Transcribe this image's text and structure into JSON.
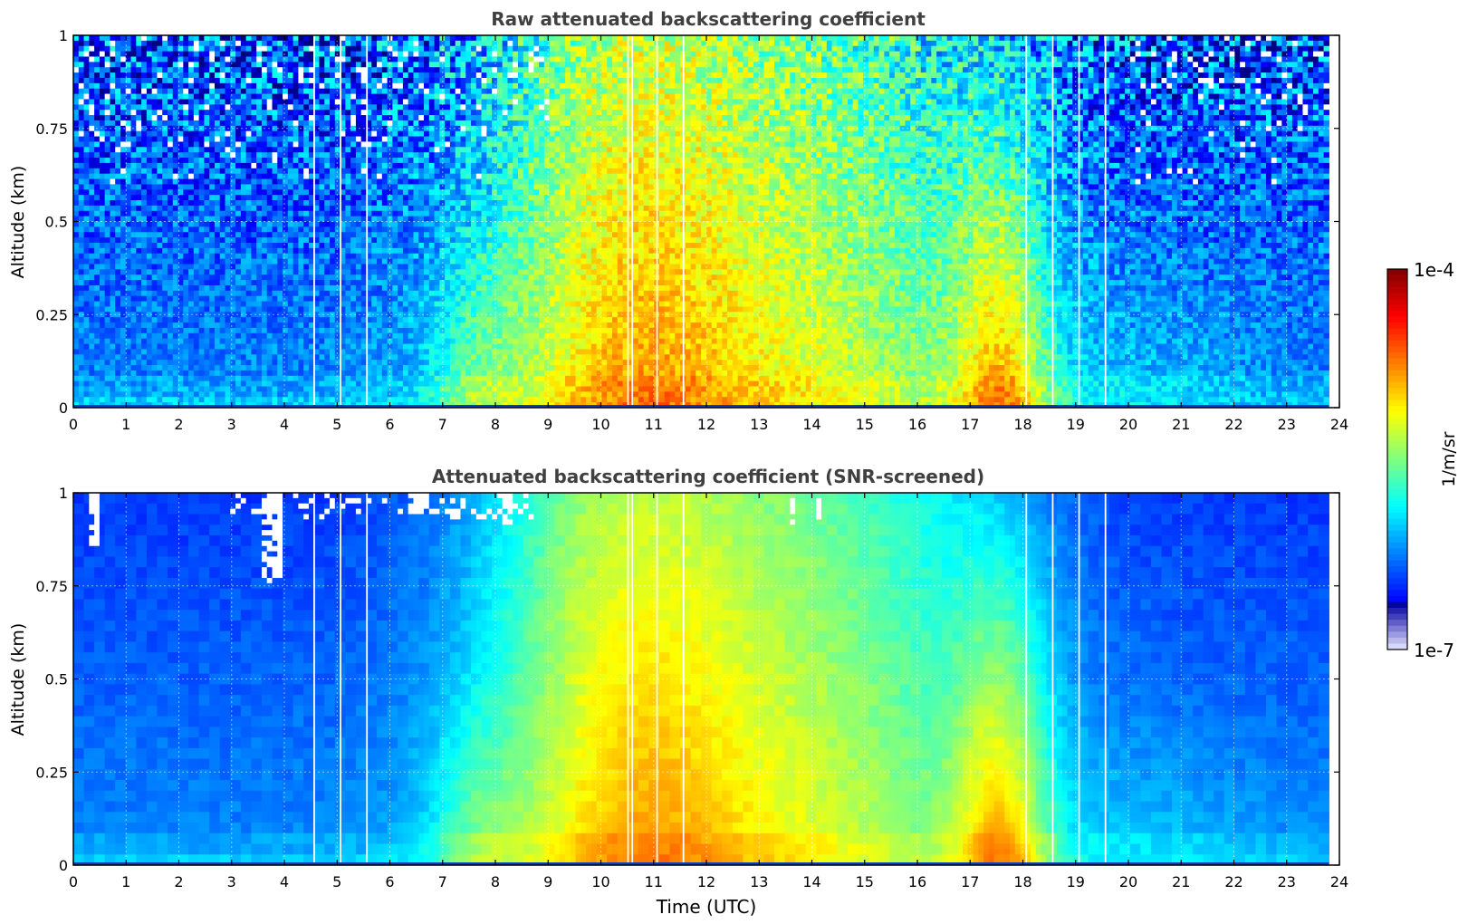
{
  "chart_data": [
    {
      "type": "heatmap",
      "title": "Raw attenuated backscattering coefficient",
      "xlabel": "",
      "ylabel": "Altitude (km)",
      "xlim": [
        0,
        24
      ],
      "ylim": [
        0,
        1
      ],
      "x_ticks": [
        "0",
        "1",
        "2",
        "3",
        "4",
        "5",
        "6",
        "7",
        "8",
        "9",
        "10",
        "11",
        "12",
        "13",
        "14",
        "15",
        "16",
        "17",
        "18",
        "19",
        "20",
        "21",
        "22",
        "23",
        "24"
      ],
      "y_ticks": [
        "0",
        "0.25",
        "0.5",
        "0.75",
        "1"
      ],
      "data_end_hour": 23.8,
      "gap_hours": [
        4.55,
        5.05,
        5.55,
        10.5,
        10.58,
        11.05,
        11.55,
        18.05,
        18.55,
        19.05,
        19.55
      ],
      "screened_regions": [],
      "grid": true
    },
    {
      "type": "heatmap",
      "title": "Attenuated backscattering coefficient (SNR-screened)",
      "xlabel": "Time (UTC)",
      "ylabel": "Altitude (km)",
      "xlim": [
        0,
        24
      ],
      "ylim": [
        0,
        1
      ],
      "x_ticks": [
        "0",
        "1",
        "2",
        "3",
        "4",
        "5",
        "6",
        "7",
        "8",
        "9",
        "10",
        "11",
        "12",
        "13",
        "14",
        "15",
        "16",
        "17",
        "18",
        "19",
        "20",
        "21",
        "22",
        "23",
        "24"
      ],
      "y_ticks": [
        "0",
        "0.25",
        "0.5",
        "0.75",
        "1"
      ],
      "data_end_hour": 23.8,
      "gap_hours": [
        4.55,
        5.05,
        5.55,
        10.5,
        10.58,
        11.05,
        11.55,
        18.05,
        18.55,
        19.05,
        19.55
      ],
      "screened_regions": [
        {
          "x0": 3.6,
          "x1": 3.95,
          "y_min": 0.76
        },
        {
          "x0": 8.1,
          "x1": 8.35,
          "y_min": 0.92
        },
        {
          "x0": 6.3,
          "x1": 6.75,
          "y_min": 0.95
        },
        {
          "x0": 13.55,
          "x1": 13.65,
          "y_min": 0.91
        },
        {
          "x0": 14.1,
          "x1": 14.15,
          "y_min": 0.88
        },
        {
          "x0": 0.3,
          "x1": 0.45,
          "y_min": 0.86
        }
      ],
      "grid": true
    }
  ],
  "colorbar": {
    "label": "1/m/sr",
    "max_label": "1e-4",
    "min_label": "1e-7",
    "colormap": "jet"
  }
}
